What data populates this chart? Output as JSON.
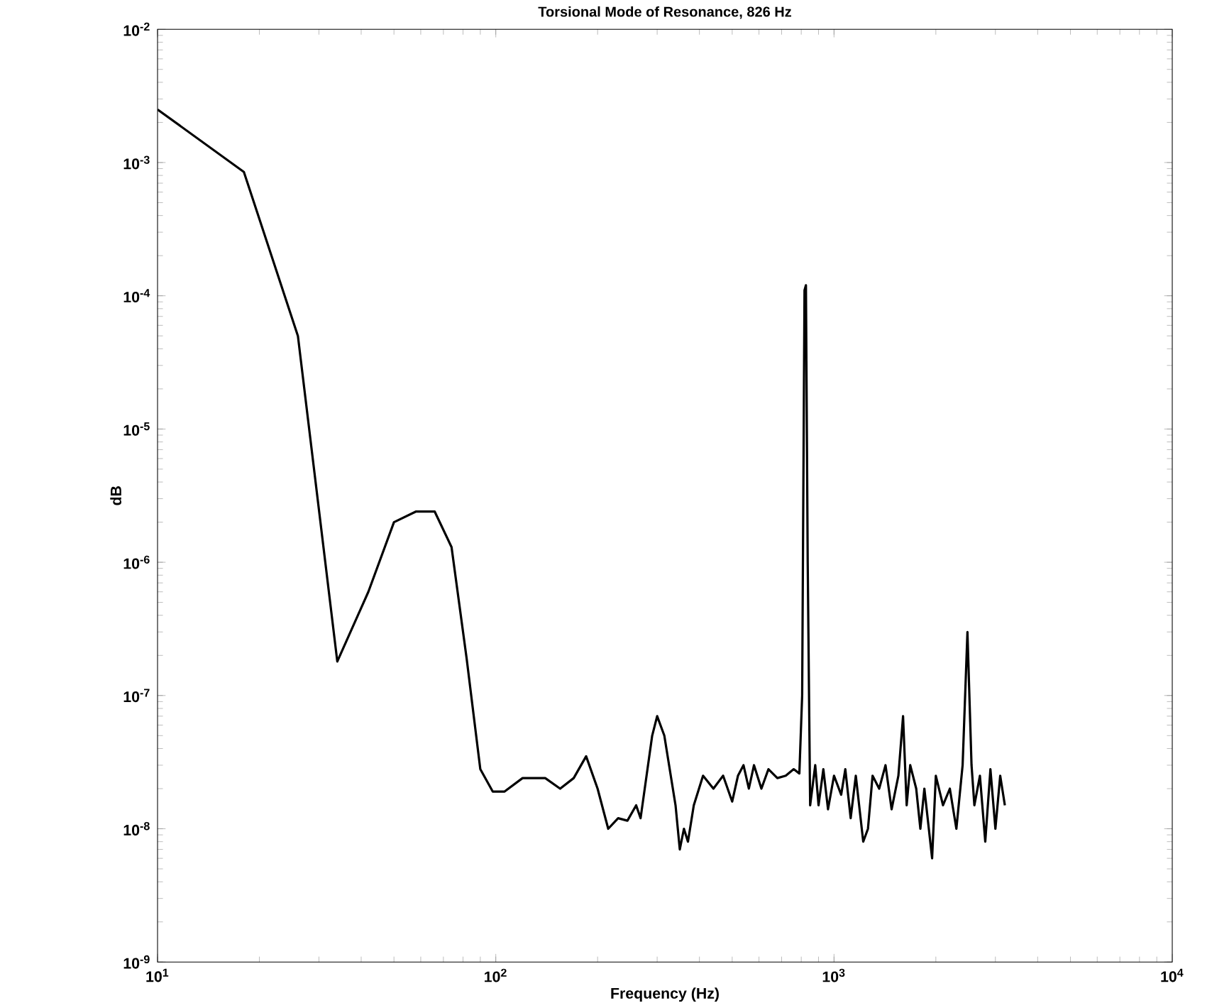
{
  "chart_data": {
    "type": "line",
    "title": "Torsional Mode of Resonance, 826 Hz",
    "xlabel": "Frequency (Hz)",
    "ylabel": "dB",
    "log": "xy",
    "xlim": [
      10,
      10000
    ],
    "ylim": [
      1e-09,
      0.01
    ],
    "xticks": [
      {
        "value": 10,
        "label": "10$^{1}$"
      },
      {
        "value": 100,
        "label": "10$^{2}$"
      },
      {
        "value": 1000,
        "label": "10$^{3}$"
      },
      {
        "value": 10000,
        "label": "10$^{4}$"
      }
    ],
    "yticks": [
      {
        "value": 1e-09,
        "label": "10$^{-9}$"
      },
      {
        "value": 1e-08,
        "label": "10$^{-8}$"
      },
      {
        "value": 1e-07,
        "label": "10$^{-7}$"
      },
      {
        "value": 1e-06,
        "label": "10$^{-6}$"
      },
      {
        "value": 1e-05,
        "label": "10$^{-5}$"
      },
      {
        "value": 0.0001,
        "label": "10$^{-4}$"
      },
      {
        "value": 0.001,
        "label": "10$^{-3}$"
      },
      {
        "value": 0.01,
        "label": "10$^{-2}$"
      }
    ],
    "series": [
      {
        "color": "#000000",
        "line_style": "solid",
        "x": [
          10,
          18,
          26,
          34,
          42,
          50,
          58,
          66,
          74,
          82,
          90,
          98,
          106,
          120,
          140,
          155,
          170,
          185,
          200,
          215,
          230,
          245,
          260,
          268,
          290,
          300,
          315,
          340,
          350,
          360,
          370,
          385,
          410,
          440,
          470,
          500,
          520,
          540,
          560,
          580,
          610,
          640,
          680,
          720,
          760,
          790,
          805,
          818,
          826,
          836,
          850,
          880,
          900,
          930,
          960,
          1000,
          1050,
          1080,
          1120,
          1160,
          1220,
          1260,
          1300,
          1360,
          1420,
          1480,
          1550,
          1600,
          1640,
          1680,
          1750,
          1800,
          1850,
          1950,
          2000,
          2100,
          2200,
          2300,
          2400,
          2480,
          2550,
          2600,
          2700,
          2800,
          2900,
          3000,
          3100,
          3200
        ],
        "values": [
          0.0025,
          0.00085,
          5e-05,
          1.8e-07,
          6e-07,
          2e-06,
          2.4e-06,
          2.4e-06,
          1.3e-06,
          1.9e-07,
          2.8e-08,
          1.9e-08,
          1.9e-08,
          2.4e-08,
          2.4e-08,
          2e-08,
          2.4e-08,
          3.5e-08,
          2e-08,
          1e-08,
          1.2e-08,
          1.15e-08,
          1.5e-08,
          1.2e-08,
          5e-08,
          7e-08,
          5e-08,
          1.5e-08,
          7e-09,
          1e-08,
          8e-09,
          1.5e-08,
          2.5e-08,
          2e-08,
          2.5e-08,
          1.6e-08,
          2.5e-08,
          3e-08,
          2e-08,
          3e-08,
          2e-08,
          2.8e-08,
          2.4e-08,
          2.5e-08,
          2.8e-08,
          2.6e-08,
          1e-07,
          0.00011,
          0.00012,
          1e-06,
          1.5e-08,
          3e-08,
          1.5e-08,
          2.8e-08,
          1.4e-08,
          2.5e-08,
          1.8e-08,
          2.8e-08,
          1.2e-08,
          2.5e-08,
          8e-09,
          1e-08,
          2.5e-08,
          2e-08,
          3e-08,
          1.4e-08,
          2.5e-08,
          7e-08,
          1.5e-08,
          3e-08,
          2e-08,
          1e-08,
          2e-08,
          6e-09,
          2.5e-08,
          1.5e-08,
          2e-08,
          1e-08,
          3e-08,
          3e-07,
          3e-08,
          1.5e-08,
          2.5e-08,
          8e-09,
          2.8e-08,
          1e-08,
          2.5e-08,
          1.5e-08
        ]
      }
    ]
  }
}
